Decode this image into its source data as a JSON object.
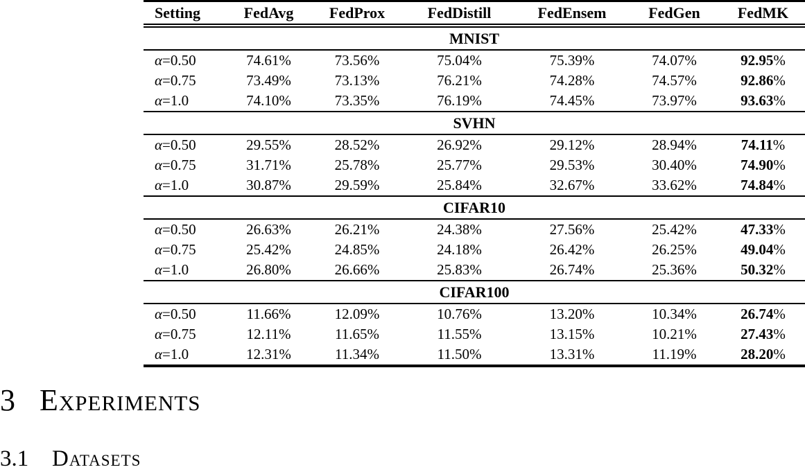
{
  "table": {
    "columns": [
      "Setting",
      "FedAvg",
      "FedProx",
      "FedDistill",
      "FedEnsem",
      "FedGen",
      "FedMK"
    ],
    "bold_column": "FedMK",
    "sections": [
      {
        "name": "MNIST",
        "rows": [
          {
            "setting": "α=0.50",
            "values": [
              "74.61%",
              "73.56%",
              "75.04%",
              "75.39%",
              "74.07%",
              "92.95%"
            ]
          },
          {
            "setting": "α=0.75",
            "values": [
              "73.49%",
              "73.13%",
              "76.21%",
              "74.28%",
              "74.57%",
              "92.86%"
            ]
          },
          {
            "setting": "α=1.0",
            "values": [
              "74.10%",
              "73.35%",
              "76.19%",
              "74.45%",
              "73.97%",
              "93.63%"
            ]
          }
        ]
      },
      {
        "name": "SVHN",
        "rows": [
          {
            "setting": "α=0.50",
            "values": [
              "29.55%",
              "28.52%",
              "26.92%",
              "29.12%",
              "28.94%",
              "74.11%"
            ]
          },
          {
            "setting": "α=0.75",
            "values": [
              "31.71%",
              "25.78%",
              "25.77%",
              "29.53%",
              "30.40%",
              "74.90%"
            ]
          },
          {
            "setting": "α=1.0",
            "values": [
              "30.87%",
              "29.59%",
              "25.84%",
              "32.67%",
              "33.62%",
              "74.84%"
            ]
          }
        ]
      },
      {
        "name": "CIFAR10",
        "rows": [
          {
            "setting": "α=0.50",
            "values": [
              "26.63%",
              "26.21%",
              "24.38%",
              "27.56%",
              "25.42%",
              "47.33%"
            ]
          },
          {
            "setting": "α=0.75",
            "values": [
              "25.42%",
              "24.85%",
              "24.18%",
              "26.42%",
              "26.25%",
              "49.04%"
            ]
          },
          {
            "setting": "α=1.0",
            "values": [
              "26.80%",
              "26.66%",
              "25.83%",
              "26.74%",
              "25.36%",
              "50.32%"
            ]
          }
        ]
      },
      {
        "name": "CIFAR100",
        "rows": [
          {
            "setting": "α=0.50",
            "values": [
              "11.66%",
              "12.09%",
              "10.76%",
              "13.20%",
              "10.34%",
              "26.74%"
            ]
          },
          {
            "setting": "α=0.75",
            "values": [
              "12.11%",
              "11.65%",
              "11.55%",
              "13.15%",
              "10.21%",
              "27.43%"
            ]
          },
          {
            "setting": "α=1.0",
            "values": [
              "12.31%",
              "11.34%",
              "11.50%",
              "13.31%",
              "11.19%",
              "28.20%"
            ]
          }
        ]
      }
    ]
  },
  "headings": {
    "section_number": "3",
    "section_title": "Experiments",
    "subsection_number": "3.1",
    "subsection_title": "Datasets"
  }
}
